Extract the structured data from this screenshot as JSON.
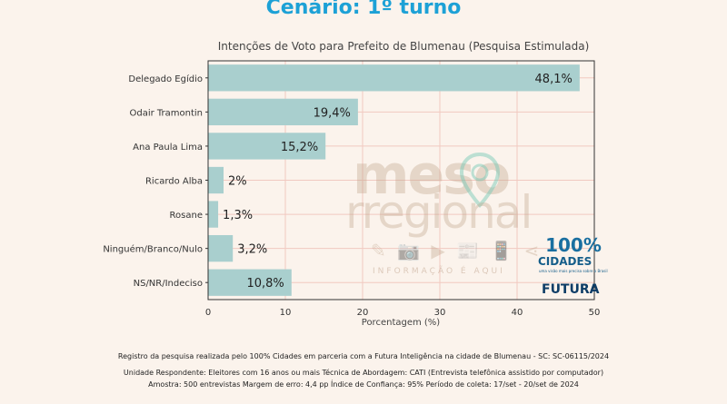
{
  "headline": "Cenário: 1º turno",
  "chart_data": {
    "type": "bar",
    "orientation": "horizontal",
    "title": "Intenções de Voto para Prefeito de Blumenau (Pesquisa Estimulada)",
    "xlabel": "Porcentagem (%)",
    "ylabel": "",
    "categories": [
      "Delegado Egídio",
      "Odair Tramontin",
      "Ana Paula Lima",
      "Ricardo Alba",
      "Rosane",
      "Ninguém/Branco/Nulo",
      "NS/NR/Indeciso"
    ],
    "values": [
      48.1,
      19.4,
      15.2,
      2,
      1.3,
      3.2,
      10.8
    ],
    "value_labels": [
      "48,1%",
      "19,4%",
      "15,2%",
      "2%",
      "1,3%",
      "3,2%",
      "10,8%"
    ],
    "xlim": [
      0,
      50
    ],
    "xticks": [
      0,
      10,
      20,
      30,
      40,
      50
    ],
    "grid": true,
    "bar_color": "#a9cfce",
    "grid_color": "#f1c9c0"
  },
  "watermark": {
    "line1": "meso",
    "line2": "rregional",
    "icons": "✎ 📷 ▶ 📰 📱 ⋖",
    "tagline": "INFORMAÇÃO É AQUI"
  },
  "logos": {
    "hundred": "100%",
    "cidades": "CIDADES",
    "cidades_tagline": "uma visão mais precisa sobre o Brasil",
    "futura": "FUTURA"
  },
  "footer": {
    "line1": "Registro da pesquisa realizada pelo 100% Cidades em parceria com a Futura Inteligência na cidade de Blumenau - SC: SC-06115/2024",
    "line2": "Unidade Respondente: Eleitores com 16 anos ou mais Técnica de Abordagem: CATI (Entrevista telefônica assistido por computador)",
    "line3": "Amostra: 500 entrevistas Margem de erro: 4,4 pp Índice de Confiança: 95% Período de coleta: 17/set - 20/set de 2024"
  },
  "colors": {
    "headline": "#1da1d6",
    "background": "#fbf3ec"
  }
}
